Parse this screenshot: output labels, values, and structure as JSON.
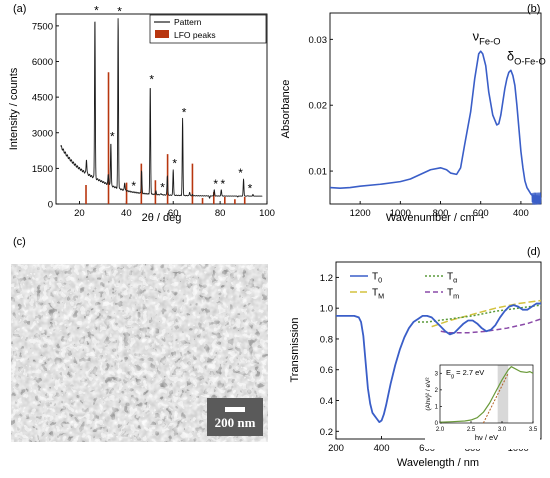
{
  "chart_data": [
    {
      "panel": "(a)",
      "type": "line",
      "xlabel": "2θ / deg",
      "ylabel": "Intensity / counts",
      "xlim": [
        10,
        100
      ],
      "ylim": [
        0,
        8000
      ],
      "xticks": [
        20,
        40,
        60,
        80,
        100
      ],
      "yticks": [
        0,
        1500,
        3000,
        4500,
        6000,
        7500
      ],
      "legend": [
        "Pattern",
        "LFO peaks"
      ],
      "legend_position": "top-right",
      "colors": {
        "Pattern": "#1a1a1a",
        "LFO peaks": "#b8360f"
      },
      "series": [
        {
          "name": "Pattern",
          "peaks": [
            {
              "x": 23.0,
              "y": 1900,
              "star": false
            },
            {
              "x": 26.6,
              "y": 7900,
              "star": true
            },
            {
              "x": 32.3,
              "y": 1250,
              "star": false
            },
            {
              "x": 33.4,
              "y": 2600,
              "star": true
            },
            {
              "x": 36.5,
              "y": 7850,
              "star": true
            },
            {
              "x": 39.3,
              "y": 900,
              "star": false
            },
            {
              "x": 42.5,
              "y": 500,
              "star": true
            },
            {
              "x": 46.5,
              "y": 1400,
              "star": false
            },
            {
              "x": 50.2,
              "y": 5000,
              "star": true
            },
            {
              "x": 52.6,
              "y": 550,
              "star": false
            },
            {
              "x": 54.8,
              "y": 450,
              "star": true
            },
            {
              "x": 57.5,
              "y": 1200,
              "star": false
            },
            {
              "x": 60.0,
              "y": 1450,
              "star": true
            },
            {
              "x": 64.0,
              "y": 3600,
              "star": true
            },
            {
              "x": 67.0,
              "y": 500,
              "star": false
            },
            {
              "x": 68.2,
              "y": 400,
              "star": false
            },
            {
              "x": 75.5,
              "y": 250,
              "star": false
            },
            {
              "x": 77.5,
              "y": 600,
              "star": true
            },
            {
              "x": 80.5,
              "y": 600,
              "star": true
            },
            {
              "x": 87.5,
              "y": 300,
              "star": false
            },
            {
              "x": 90.0,
              "y": 1050,
              "star": true
            },
            {
              "x": 91.8,
              "y": 350,
              "star": false
            },
            {
              "x": 94.0,
              "y": 400,
              "star": true
            }
          ]
        },
        {
          "name": "LFO peaks",
          "x": [
            22.8,
            32.4,
            40.1,
            46.4,
            52.4,
            57.6,
            68.2,
            72.5,
            77.3,
            82.0,
            86.3,
            90.5
          ],
          "values": [
            800,
            5550,
            900,
            1700,
            1000,
            2100,
            1700,
            250,
            500,
            300,
            200,
            300
          ]
        }
      ]
    },
    {
      "panel": "(b)",
      "type": "line",
      "xlabel": "Wavenumber / cm⁻¹",
      "ylabel": "Absorbance",
      "xlim": [
        1350,
        300
      ],
      "ylim": [
        0.005,
        0.034
      ],
      "xticks": [
        1200,
        1000,
        800,
        600,
        400
      ],
      "yticks": [
        0.01,
        0.02,
        0.03
      ],
      "annotations": [
        "ν",
        "Fe-O",
        "δ",
        "O-Fe-O"
      ],
      "colors": {
        "line": "#3a5ec8"
      },
      "series": [
        {
          "x": [
            1350,
            1300,
            1250,
            1200,
            1100,
            1000,
            950,
            900,
            850,
            800,
            770,
            750,
            720,
            700,
            680,
            650,
            630,
            610,
            600,
            590,
            575,
            560,
            540,
            520,
            510,
            500,
            490,
            480,
            470,
            460,
            450,
            440,
            430,
            420,
            410,
            400,
            390,
            380,
            370,
            360,
            350,
            340,
            330,
            320,
            310,
            300
          ],
          "values": [
            0.0075,
            0.0074,
            0.0075,
            0.0077,
            0.008,
            0.0084,
            0.0088,
            0.0095,
            0.0102,
            0.0105,
            0.0102,
            0.0097,
            0.0095,
            0.0105,
            0.014,
            0.019,
            0.024,
            0.0278,
            0.0282,
            0.0278,
            0.026,
            0.022,
            0.0185,
            0.017,
            0.0172,
            0.0185,
            0.0205,
            0.0225,
            0.024,
            0.025,
            0.0253,
            0.0245,
            0.023,
            0.02,
            0.0165,
            0.013,
            0.0105,
            0.0085,
            0.0075,
            0.007,
            0.0065,
            0.0062,
            0.006,
            0.0058,
            0.0058,
            0.006
          ]
        }
      ]
    },
    {
      "panel": "(d)",
      "type": "line",
      "xlabel": "Wavelength / nm",
      "ylabel": "Transmission",
      "xlim": [
        200,
        1100
      ],
      "ylim": [
        0.15,
        1.3
      ],
      "xticks": [
        200,
        400,
        600,
        800,
        1000
      ],
      "yticks": [
        0.2,
        0.4,
        0.6,
        0.8,
        1.0,
        1.2
      ],
      "legend_position": "top-left",
      "series": [
        {
          "name": "T",
          "sub": "0",
          "color": "#3a5ec8",
          "dash": "solid",
          "x": [
            200,
            220,
            240,
            260,
            280,
            300,
            310,
            320,
            330,
            340,
            350,
            360,
            370,
            380,
            390,
            400,
            410,
            420,
            430,
            440,
            460,
            480,
            500,
            520,
            540,
            560,
            580,
            600,
            620,
            640,
            660,
            680,
            700,
            720,
            740,
            760,
            780,
            800,
            820,
            840,
            860,
            880,
            900,
            920,
            940,
            960,
            980,
            1000,
            1020,
            1040,
            1060,
            1080,
            1100
          ],
          "values": [
            0.95,
            0.95,
            0.95,
            0.95,
            0.95,
            0.94,
            0.91,
            0.82,
            0.65,
            0.48,
            0.38,
            0.32,
            0.3,
            0.28,
            0.26,
            0.27,
            0.31,
            0.37,
            0.44,
            0.51,
            0.63,
            0.73,
            0.81,
            0.87,
            0.91,
            0.93,
            0.95,
            0.95,
            0.94,
            0.91,
            0.88,
            0.85,
            0.83,
            0.84,
            0.87,
            0.9,
            0.92,
            0.92,
            0.9,
            0.87,
            0.85,
            0.86,
            0.89,
            0.94,
            0.98,
            1.01,
            1.02,
            1.01,
            0.99,
            0.99,
            1.01,
            1.03,
            1.03
          ]
        },
        {
          "name": "T",
          "sub": "M",
          "color": "#d3c23e",
          "dash": "long",
          "x": [
            620,
            700,
            800,
            900,
            1000,
            1100
          ],
          "values": [
            0.88,
            0.92,
            0.96,
            1.0,
            1.03,
            1.05
          ]
        },
        {
          "name": "T",
          "sub": "α",
          "color": "#5a9a3a",
          "dash": "dot",
          "x": [
            560,
            600,
            700,
            800,
            900,
            1000,
            1100
          ],
          "values": [
            0.91,
            0.91,
            0.93,
            0.95,
            0.98,
            1.0,
            1.02
          ]
        },
        {
          "name": "T",
          "sub": "m",
          "color": "#8a4aa8",
          "dash": "dash",
          "x": [
            660,
            700,
            780,
            860,
            950,
            1040,
            1100
          ],
          "values": [
            0.85,
            0.84,
            0.84,
            0.85,
            0.87,
            0.9,
            0.93
          ]
        }
      ],
      "inset": {
        "type": "line",
        "xlabel": "hν / eV",
        "ylabel": "(Ahν)² / eV²",
        "annotation": {
          "label": "E",
          "sub": "g",
          "value": "= 2.7 eV"
        },
        "xlim": [
          2.0,
          3.5
        ],
        "ylim": [
          0,
          3.5
        ],
        "xticks": [
          2.0,
          2.5,
          3.0,
          3.5
        ],
        "yticks": [
          0,
          1,
          2,
          3
        ],
        "shaded_region": [
          2.93,
          3.1
        ],
        "series": [
          {
            "name": "data",
            "color": "#6a9a3a",
            "x": [
              2.0,
              2.2,
              2.4,
              2.5,
              2.6,
              2.7,
              2.8,
              2.9,
              3.0,
              3.1,
              3.15,
              3.2,
              3.3,
              3.4,
              3.45,
              3.5
            ],
            "values": [
              0.05,
              0.08,
              0.12,
              0.18,
              0.32,
              0.65,
              1.2,
              1.9,
              2.6,
              3.2,
              3.4,
              3.3,
              3.1,
              3.05,
              3.1,
              3.0
            ]
          },
          {
            "name": "fit",
            "color": "#b06020",
            "x": [
              2.7,
              3.1
            ],
            "values": [
              0.0,
              3.0
            ]
          }
        ]
      }
    }
  ],
  "figure": {
    "panel_a_label": "(a)",
    "panel_b_label": "(b)",
    "panel_c_label": "(c)",
    "panel_d_label": "(d)",
    "scale_bar_label": "200 nm"
  }
}
